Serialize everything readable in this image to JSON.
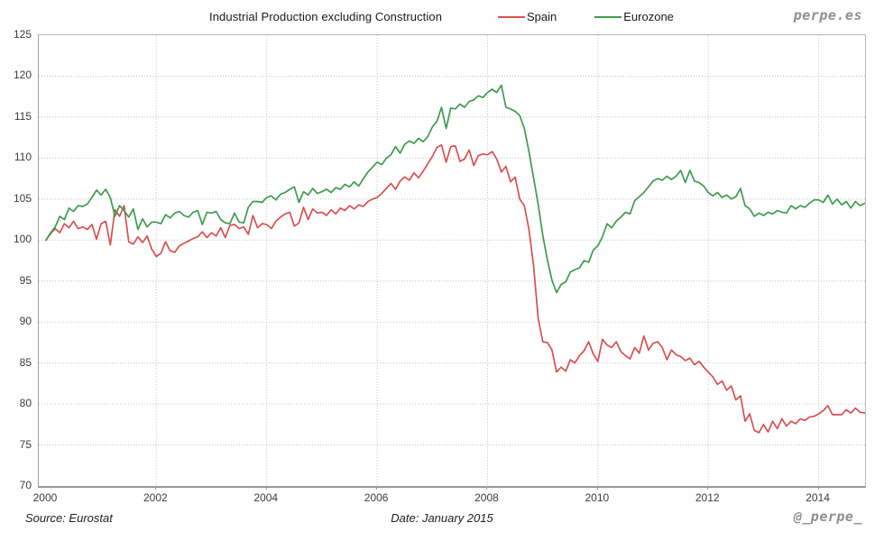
{
  "header": {
    "title": "Industrial Production excluding Construction",
    "brand": "perpe.es"
  },
  "footer": {
    "source": "Source: Eurostat",
    "date": "Date: January 2015",
    "handle": "@_perpe_"
  },
  "chart_data": {
    "type": "line",
    "title": "Industrial Production excluding Construction",
    "frequency": "monthly",
    "x_start_year": 2000,
    "x_end_label": "Nov 2014",
    "x_ticks": [
      2000,
      2002,
      2004,
      2006,
      2008,
      2010,
      2012,
      2014
    ],
    "x_gridline_years": [
      2002,
      2004,
      2006,
      2008,
      2010,
      2012,
      2014
    ],
    "y_ticks": [
      70,
      75,
      80,
      85,
      90,
      95,
      100,
      105,
      110,
      115,
      120,
      125
    ],
    "y_gridlines": [
      75,
      80,
      85,
      90,
      95,
      100,
      105,
      110,
      115,
      120
    ],
    "ylim": [
      70,
      125
    ],
    "xlim_years": [
      1999.87,
      2014.84
    ],
    "grid": "dotted",
    "legend_position": "top",
    "series": [
      {
        "name": "Spain",
        "color": "#d85050",
        "values": [
          100.0,
          100.8,
          101.4,
          100.9,
          102.0,
          101.5,
          102.3,
          101.4,
          101.6,
          101.3,
          101.9,
          100.1,
          102.0,
          102.3,
          99.4,
          103.7,
          102.9,
          104.2,
          99.8,
          99.5,
          100.4,
          99.7,
          100.5,
          98.9,
          98.0,
          98.4,
          99.8,
          98.7,
          98.5,
          99.3,
          99.6,
          99.9,
          100.2,
          100.4,
          101.0,
          100.3,
          100.9,
          100.5,
          101.5,
          100.3,
          101.8,
          101.9,
          101.4,
          101.6,
          100.7,
          103.0,
          101.5,
          102.0,
          101.9,
          101.4,
          102.3,
          102.8,
          103.2,
          103.4,
          101.7,
          102.1,
          104.0,
          102.5,
          103.8,
          103.3,
          103.4,
          103.0,
          103.7,
          103.2,
          103.9,
          103.6,
          104.2,
          103.8,
          104.3,
          104.1,
          104.7,
          105.0,
          105.2,
          105.7,
          106.3,
          106.9,
          106.2,
          107.2,
          107.7,
          107.3,
          108.2,
          107.6,
          108.4,
          109.3,
          110.2,
          111.3,
          111.6,
          109.5,
          111.4,
          111.5,
          109.6,
          109.9,
          111.0,
          109.1,
          110.3,
          110.5,
          110.4,
          110.8,
          109.9,
          108.3,
          109.0,
          107.1,
          107.7,
          105.0,
          104.2,
          101.3,
          96.9,
          90.5,
          87.6,
          87.5,
          86.6,
          83.9,
          84.5,
          84.0,
          85.4,
          85.0,
          85.9,
          86.5,
          87.6,
          86.1,
          85.2,
          87.9,
          87.2,
          86.9,
          87.6,
          86.4,
          85.9,
          85.5,
          86.9,
          86.2,
          88.3,
          86.6,
          87.4,
          87.6,
          86.9,
          85.4,
          86.6,
          86.0,
          85.8,
          85.3,
          85.6,
          84.8,
          85.2,
          84.5,
          83.9,
          83.3,
          82.4,
          82.8,
          81.7,
          82.2,
          80.5,
          81.0,
          77.9,
          78.8,
          76.8,
          76.5,
          77.5,
          76.6,
          77.9,
          77.0,
          78.2,
          77.3,
          77.9,
          77.6,
          78.2,
          78.0,
          78.4,
          78.5,
          78.8,
          79.2,
          79.8,
          78.7,
          78.7,
          78.7,
          79.3,
          78.9,
          79.5,
          79.0,
          78.9
        ]
      },
      {
        "name": "Eurozone",
        "color": "#3f9b4f",
        "values": [
          100.0,
          100.9,
          101.6,
          102.9,
          102.5,
          103.9,
          103.5,
          104.2,
          104.1,
          104.4,
          105.2,
          106.1,
          105.5,
          106.2,
          105.2,
          102.9,
          104.2,
          103.6,
          102.8,
          103.8,
          101.3,
          102.6,
          101.6,
          102.2,
          102.2,
          102.0,
          103.1,
          102.7,
          103.3,
          103.5,
          103.0,
          102.8,
          103.4,
          103.6,
          101.9,
          103.4,
          103.3,
          103.5,
          102.5,
          102.1,
          102.0,
          103.3,
          102.2,
          102.1,
          104.0,
          104.7,
          104.7,
          104.6,
          105.2,
          105.4,
          104.9,
          105.6,
          105.8,
          106.2,
          106.5,
          104.6,
          105.9,
          105.5,
          106.3,
          105.7,
          105.9,
          106.2,
          105.8,
          106.4,
          106.2,
          106.8,
          106.5,
          107.1,
          106.6,
          107.5,
          108.3,
          108.9,
          109.5,
          109.2,
          110.0,
          110.4,
          111.4,
          110.6,
          111.7,
          112.1,
          111.8,
          112.4,
          112.0,
          112.6,
          113.8,
          114.5,
          116.2,
          113.6,
          116.1,
          116.0,
          116.6,
          116.2,
          116.9,
          117.1,
          117.6,
          117.4,
          118.0,
          118.4,
          118.0,
          118.9,
          116.2,
          116.0,
          115.7,
          115.2,
          113.6,
          110.8,
          107.6,
          104.4,
          100.6,
          97.6,
          95.1,
          93.6,
          94.6,
          94.9,
          96.1,
          96.4,
          96.6,
          97.5,
          97.3,
          98.8,
          99.3,
          100.4,
          102.0,
          101.5,
          102.3,
          102.8,
          103.4,
          103.2,
          104.8,
          105.3,
          105.8,
          106.5,
          107.2,
          107.5,
          107.3,
          107.8,
          107.4,
          107.8,
          108.5,
          107.0,
          108.5,
          107.2,
          107.0,
          106.6,
          105.8,
          105.4,
          105.8,
          105.2,
          105.5,
          105.0,
          105.3,
          106.3,
          104.2,
          103.8,
          102.9,
          103.3,
          103.0,
          103.4,
          103.2,
          103.6,
          103.4,
          103.3,
          104.2,
          103.8,
          104.2,
          104.0,
          104.5,
          104.9,
          104.9,
          104.6,
          105.5,
          104.4,
          105.0,
          104.3,
          104.7,
          103.9,
          104.7,
          104.2,
          104.5
        ]
      }
    ]
  }
}
